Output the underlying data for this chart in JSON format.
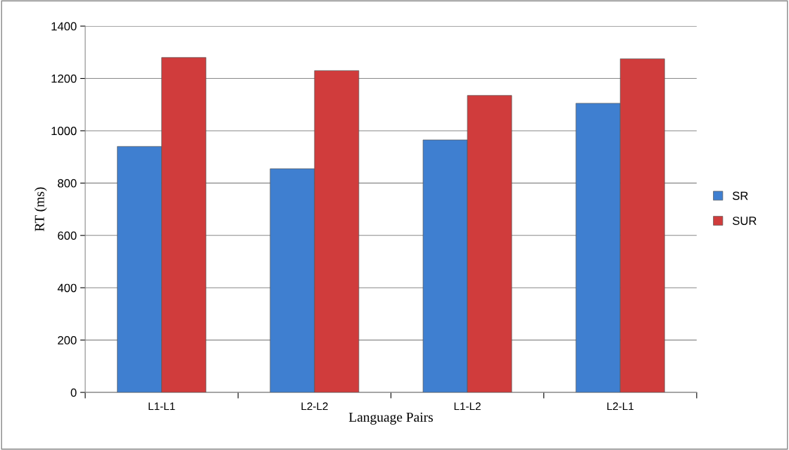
{
  "chart_data": {
    "type": "bar",
    "xlabel": "Language Pairs",
    "ylabel": "RT (ms)",
    "categories": [
      "L1-L1",
      "L2-L2",
      "L1-L2",
      "L2-L1"
    ],
    "series": [
      {
        "name": "SR",
        "color": "#3f7fd0",
        "values": [
          940,
          855,
          965,
          1105
        ]
      },
      {
        "name": "SUR",
        "color": "#d03c3c",
        "values": [
          1280,
          1230,
          1135,
          1275
        ]
      }
    ],
    "ylim": [
      0,
      1400
    ],
    "yticks": [
      0,
      200,
      400,
      600,
      800,
      1000,
      1200,
      1400
    ],
    "grid": "y",
    "legend": "right"
  }
}
